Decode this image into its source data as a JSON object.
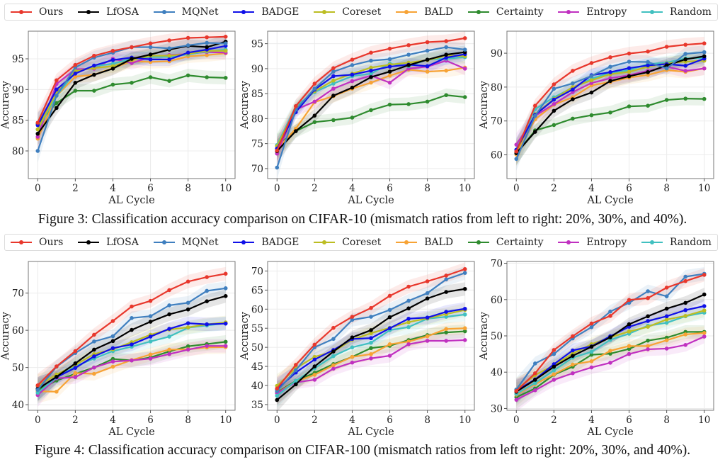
{
  "legend": [
    {
      "name": "Ours",
      "color": "#e8372c"
    },
    {
      "name": "LfOSA",
      "color": "#000000"
    },
    {
      "name": "MQNet",
      "color": "#3f7fbf"
    },
    {
      "name": "BADGE",
      "color": "#1010e8"
    },
    {
      "name": "Coreset",
      "color": "#bcbd22"
    },
    {
      "name": "BALD",
      "color": "#f7a335"
    },
    {
      "name": "Certainty",
      "color": "#2e8b2e"
    },
    {
      "name": "Entropy",
      "color": "#c030c0"
    },
    {
      "name": "Random",
      "color": "#40c0c0"
    }
  ],
  "captions": {
    "figure3": "Figure 3: Classification accuracy comparison on CIFAR-10 (mismatch ratios from left to right: 20%, 30%, and 40%).",
    "figure4": "Figure 4: Classification accuracy comparison on CIFAR-100 (mismatch ratios from left to right: 20%, 30%, and 40%)."
  },
  "chart_data": [
    {
      "type": "line",
      "figure": "Figure 3",
      "dataset": "CIFAR-10",
      "mismatch_ratio": "20%",
      "xlabel": "AL Cycle",
      "ylabel": "Accuracy",
      "x": [
        0,
        1,
        2,
        3,
        4,
        5,
        6,
        7,
        8,
        9,
        10
      ],
      "xticks": [
        0,
        2,
        4,
        6,
        8,
        10
      ],
      "yticks": [
        80,
        85,
        90,
        95
      ],
      "xlim": [
        -0.5,
        10.5
      ],
      "ylim": [
        75.5,
        99.5
      ],
      "grid": true,
      "series": [
        {
          "name": "Ours",
          "values": [
            84.6,
            91.5,
            94.0,
            95.5,
            96.3,
            96.9,
            97.5,
            98.0,
            98.4,
            98.5,
            98.6
          ]
        },
        {
          "name": "LfOSA",
          "values": [
            82.8,
            87.0,
            91.1,
            92.4,
            93.4,
            95.0,
            95.7,
            96.5,
            97.1,
            96.9,
            97.8
          ]
        },
        {
          "name": "MQNet",
          "values": [
            80.0,
            89.0,
            93.6,
            95.2,
            96.0,
            96.9,
            96.9,
            96.7,
            97.2,
            97.6,
            97.5
          ]
        },
        {
          "name": "BADGE",
          "values": [
            84.2,
            90.0,
            92.6,
            93.9,
            94.8,
            95.2,
            94.9,
            94.9,
            96.0,
            96.5,
            97.1
          ]
        },
        {
          "name": "Coreset",
          "values": [
            83.5,
            89.5,
            93.0,
            93.5,
            93.8,
            94.8,
            95.5,
            95.5,
            95.8,
            96.3,
            96.3
          ]
        },
        {
          "name": "BALD",
          "values": [
            82.0,
            89.0,
            92.1,
            92.4,
            93.5,
            94.6,
            94.5,
            94.6,
            95.4,
            95.6,
            95.9
          ]
        },
        {
          "name": "Certainty",
          "values": [
            84.4,
            87.8,
            89.8,
            89.8,
            90.8,
            91.1,
            92.0,
            91.4,
            92.3,
            92.0,
            91.9
          ]
        },
        {
          "name": "Entropy",
          "values": [
            82.3,
            90.9,
            93.3,
            93.4,
            95.0,
            94.3,
            95.3,
            95.6,
            95.8,
            96.1,
            96.0
          ]
        },
        {
          "name": "Random",
          "values": [
            83.5,
            89.0,
            92.8,
            93.8,
            94.2,
            95.0,
            95.3,
            95.3,
            95.7,
            96.2,
            96.5
          ]
        }
      ]
    },
    {
      "type": "line",
      "figure": "Figure 3",
      "dataset": "CIFAR-10",
      "mismatch_ratio": "30%",
      "xlabel": "AL Cycle",
      "ylabel": "Accuracy",
      "x": [
        0,
        1,
        2,
        3,
        4,
        5,
        6,
        7,
        8,
        9,
        10
      ],
      "xticks": [
        0,
        2,
        4,
        6,
        8,
        10
      ],
      "yticks": [
        70,
        75,
        80,
        85,
        90,
        95
      ],
      "xlim": [
        -0.5,
        10.5
      ],
      "ylim": [
        68,
        97.5
      ],
      "grid": true,
      "series": [
        {
          "name": "Ours",
          "values": [
            73.6,
            82.5,
            87.0,
            90.1,
            91.8,
            93.2,
            94.0,
            94.7,
            95.3,
            95.5,
            96.1
          ]
        },
        {
          "name": "LfOSA",
          "values": [
            73.5,
            77.5,
            80.6,
            84.6,
            86.2,
            88.3,
            89.4,
            90.7,
            91.8,
            92.8,
            93.3
          ]
        },
        {
          "name": "MQNet",
          "values": [
            70.2,
            81.8,
            86.0,
            89.4,
            90.7,
            91.6,
            91.9,
            92.8,
            93.6,
            94.3,
            93.8
          ]
        },
        {
          "name": "BADGE",
          "values": [
            74.0,
            81.3,
            85.8,
            88.5,
            88.8,
            89.6,
            90.4,
            90.8,
            90.5,
            92.2,
            92.9
          ]
        },
        {
          "name": "Coreset",
          "values": [
            74.5,
            82.0,
            85.5,
            87.6,
            89.0,
            90.2,
            90.8,
            91.2,
            91.7,
            92.6,
            92.5
          ]
        },
        {
          "name": "BALD",
          "values": [
            73.9,
            78.0,
            83.3,
            84.5,
            86.0,
            87.2,
            88.6,
            89.8,
            89.4,
            89.6,
            90.2
          ]
        },
        {
          "name": "Certainty",
          "values": [
            74.6,
            77.5,
            79.3,
            79.7,
            80.2,
            81.7,
            82.8,
            82.9,
            83.4,
            84.7,
            84.3
          ]
        },
        {
          "name": "Entropy",
          "values": [
            73.0,
            81.8,
            83.4,
            86.0,
            87.5,
            88.6,
            87.2,
            90.0,
            90.4,
            91.6,
            90.0
          ]
        },
        {
          "name": "Random",
          "values": [
            74.7,
            82.5,
            85.3,
            87.0,
            88.5,
            89.0,
            91.0,
            90.5,
            91.8,
            92.0,
            92.3
          ]
        }
      ]
    },
    {
      "type": "line",
      "figure": "Figure 3",
      "dataset": "CIFAR-10",
      "mismatch_ratio": "40%",
      "xlabel": "AL Cycle",
      "ylabel": "Accuracy",
      "x": [
        0,
        1,
        2,
        3,
        4,
        5,
        6,
        7,
        8,
        9,
        10
      ],
      "xticks": [
        0,
        2,
        4,
        6,
        8,
        10
      ],
      "yticks": [
        60,
        70,
        80,
        90
      ],
      "xlim": [
        -0.5,
        10.5
      ],
      "ylim": [
        53,
        96.5
      ],
      "grid": true,
      "series": [
        {
          "name": "Ours",
          "values": [
            61.0,
            74.5,
            80.8,
            84.8,
            87.1,
            88.8,
            89.9,
            90.5,
            91.9,
            92.5,
            92.9
          ]
        },
        {
          "name": "LfOSA",
          "values": [
            60.5,
            66.8,
            73.0,
            76.4,
            78.4,
            81.8,
            83.2,
            84.4,
            86.4,
            88.2,
            89.1
          ]
        },
        {
          "name": "MQNet",
          "values": [
            58.8,
            71.5,
            79.5,
            81.1,
            83.3,
            86.0,
            87.5,
            87.4,
            85.5,
            89.8,
            90.3
          ]
        },
        {
          "name": "BADGE",
          "values": [
            61.5,
            71.8,
            76.3,
            79.3,
            83.5,
            84.4,
            85.6,
            86.4,
            86.8,
            86.3,
            88.4
          ]
        },
        {
          "name": "Coreset",
          "values": [
            61.0,
            72.0,
            76.5,
            80.0,
            82.0,
            83.8,
            84.5,
            86.0,
            87.0,
            87.5,
            87.8
          ]
        },
        {
          "name": "BALD",
          "values": [
            60.1,
            70.5,
            74.8,
            77.0,
            80.5,
            81.5,
            82.8,
            83.6,
            85.0,
            84.5,
            85.5
          ]
        },
        {
          "name": "Certainty",
          "values": [
            60.3,
            67.2,
            68.8,
            70.7,
            71.7,
            72.5,
            74.3,
            74.5,
            76.2,
            76.6,
            76.5
          ]
        },
        {
          "name": "Entropy",
          "values": [
            63.0,
            71.5,
            75.0,
            78.5,
            81.2,
            82.6,
            83.5,
            84.8,
            86.0,
            84.8,
            85.5
          ]
        },
        {
          "name": "Random",
          "values": [
            61.5,
            73.5,
            77.0,
            79.8,
            82.5,
            84.2,
            85.0,
            86.8,
            87.2,
            88.5,
            88.6
          ]
        }
      ]
    },
    {
      "type": "line",
      "figure": "Figure 4",
      "dataset": "CIFAR-100",
      "mismatch_ratio": "20%",
      "xlabel": "AL Cycle",
      "ylabel": "Accuracy",
      "x": [
        0,
        1,
        2,
        3,
        4,
        5,
        6,
        7,
        8,
        9,
        10
      ],
      "xticks": [
        0,
        2,
        4,
        6,
        8,
        10
      ],
      "yticks": [
        40,
        50,
        60,
        70
      ],
      "xlim": [
        -0.5,
        10.5
      ],
      "ylim": [
        38.5,
        78.5
      ],
      "grid": true,
      "series": [
        {
          "name": "Ours",
          "values": [
            45.2,
            50.3,
            54.4,
            58.8,
            62.5,
            66.4,
            67.9,
            70.8,
            73.1,
            74.3,
            75.2
          ]
        },
        {
          "name": "LfOSA",
          "values": [
            44.2,
            47.5,
            51.1,
            54.8,
            57.1,
            60.1,
            62.3,
            64.3,
            65.6,
            67.8,
            69.2
          ]
        },
        {
          "name": "MQNet",
          "values": [
            44.0,
            50.2,
            53.9,
            57.0,
            58.4,
            63.3,
            63.8,
            66.7,
            67.4,
            70.6,
            71.3
          ]
        },
        {
          "name": "BADGE",
          "values": [
            44.3,
            47.4,
            49.9,
            53.0,
            55.2,
            56.2,
            58.3,
            60.4,
            61.9,
            61.6,
            61.8
          ]
        },
        {
          "name": "Coreset",
          "values": [
            45.0,
            48.1,
            50.7,
            53.6,
            54.9,
            56.8,
            58.8,
            60.2,
            60.8,
            61.6,
            62.1
          ]
        },
        {
          "name": "BALD",
          "values": [
            43.6,
            43.5,
            48.5,
            48.3,
            50.2,
            52.0,
            53.5,
            54.8,
            54.9,
            55.4,
            55.5
          ]
        },
        {
          "name": "Certainty",
          "values": [
            43.9,
            46.5,
            48.3,
            50.0,
            52.3,
            51.9,
            52.7,
            54.3,
            55.7,
            56.3,
            56.9
          ]
        },
        {
          "name": "Entropy",
          "values": [
            42.6,
            47.1,
            47.4,
            50.0,
            51.6,
            51.9,
            52.4,
            53.6,
            54.8,
            55.8,
            55.8
          ]
        },
        {
          "name": "Random",
          "values": [
            43.2,
            47.3,
            50.3,
            52.4,
            54.4,
            55.6,
            57.0,
            58.3,
            60.7,
            61.3,
            61.9
          ]
        }
      ]
    },
    {
      "type": "line",
      "figure": "Figure 4",
      "dataset": "CIFAR-100",
      "mismatch_ratio": "30%",
      "xlabel": "AL Cycle",
      "ylabel": "Accuracy",
      "x": [
        0,
        1,
        2,
        3,
        4,
        5,
        6,
        7,
        8,
        9,
        10
      ],
      "xticks": [
        0,
        2,
        4,
        6,
        8,
        10
      ],
      "yticks": [
        35,
        40,
        45,
        50,
        55,
        60,
        65,
        70
      ],
      "xlim": [
        -0.5,
        10.5
      ],
      "ylim": [
        33.5,
        72.5
      ],
      "grid": true,
      "series": [
        {
          "name": "Ours",
          "values": [
            39.2,
            45.4,
            50.7,
            55.1,
            58.0,
            60.3,
            63.5,
            65.9,
            67.3,
            68.8,
            70.5
          ]
        },
        {
          "name": "LfOSA",
          "values": [
            36.2,
            40.3,
            45.0,
            48.9,
            52.6,
            54.5,
            57.9,
            60.2,
            62.8,
            64.5,
            65.3
          ]
        },
        {
          "name": "MQNet",
          "values": [
            38.5,
            44.0,
            50.0,
            52.2,
            57.2,
            58.0,
            59.8,
            62.2,
            64.2,
            67.8,
            69.5
          ]
        },
        {
          "name": "BADGE",
          "values": [
            39.0,
            43.4,
            46.8,
            49.3,
            52.2,
            52.4,
            55.0,
            57.5,
            57.8,
            59.3,
            60.1
          ]
        },
        {
          "name": "Coreset",
          "values": [
            39.9,
            44.5,
            47.5,
            48.9,
            52.0,
            53.7,
            55.1,
            56.6,
            57.6,
            58.7,
            59.8
          ]
        },
        {
          "name": "BALD",
          "values": [
            38.0,
            41.0,
            42.8,
            45.3,
            47.5,
            48.2,
            50.8,
            51.5,
            52.9,
            54.8,
            55.0
          ]
        },
        {
          "name": "Certainty",
          "values": [
            38.2,
            41.2,
            43.3,
            45.6,
            47.5,
            49.8,
            50.4,
            51.9,
            53.2,
            53.9,
            54.2
          ]
        },
        {
          "name": "Entropy",
          "values": [
            38.0,
            40.8,
            41.5,
            44.4,
            46.0,
            47.1,
            47.8,
            50.8,
            51.7,
            51.7,
            51.9
          ]
        },
        {
          "name": "Random",
          "values": [
            37.3,
            41.2,
            44.5,
            47.7,
            50.0,
            51.2,
            54.5,
            55.3,
            57.5,
            58.0,
            58.6
          ]
        }
      ]
    },
    {
      "type": "line",
      "figure": "Figure 4",
      "dataset": "CIFAR-100",
      "mismatch_ratio": "40%",
      "xlabel": "AL Cycle",
      "ylabel": "Accuracy",
      "x": [
        0,
        1,
        2,
        3,
        4,
        5,
        6,
        7,
        8,
        9,
        10
      ],
      "xticks": [
        0,
        2,
        4,
        6,
        8,
        10
      ],
      "yticks": [
        30,
        40,
        50,
        60,
        70
      ],
      "xlim": [
        -0.5,
        10.5
      ],
      "ylim": [
        29.5,
        70.5
      ],
      "grid": true,
      "series": [
        {
          "name": "Ours",
          "values": [
            34.8,
            39.7,
            46.1,
            49.9,
            53.4,
            55.5,
            59.9,
            60.4,
            63.3,
            65.1,
            66.8
          ]
        },
        {
          "name": "LfOSA",
          "values": [
            34.6,
            37.9,
            41.5,
            44.5,
            47.0,
            49.6,
            53.2,
            55.4,
            57.5,
            59.1,
            61.4
          ]
        },
        {
          "name": "MQNet",
          "values": [
            35.2,
            42.4,
            45.0,
            49.3,
            52.4,
            56.7,
            59.1,
            62.3,
            60.9,
            66.3,
            67.1
          ]
        },
        {
          "name": "BADGE",
          "values": [
            34.9,
            38.0,
            42.2,
            46.0,
            47.1,
            49.9,
            52.5,
            54.1,
            55.4,
            57.1,
            58.2
          ]
        },
        {
          "name": "Coreset",
          "values": [
            35.2,
            39.2,
            41.9,
            45.1,
            47.7,
            49.6,
            51.2,
            52.5,
            54.5,
            55.5,
            57.0
          ]
        },
        {
          "name": "BALD",
          "values": [
            33.8,
            36.7,
            39.4,
            42.1,
            43.0,
            45.9,
            47.2,
            47.2,
            48.8,
            50.4,
            50.8
          ]
        },
        {
          "name": "Certainty",
          "values": [
            33.1,
            35.5,
            39.3,
            41.5,
            44.8,
            45.1,
            46.4,
            48.7,
            49.5,
            51.1,
            51.1
          ]
        },
        {
          "name": "Entropy",
          "values": [
            32.4,
            35.0,
            37.9,
            39.7,
            41.3,
            42.6,
            45.0,
            46.3,
            46.5,
            47.5,
            49.8
          ]
        },
        {
          "name": "Random",
          "values": [
            34.0,
            37.0,
            40.5,
            44.0,
            45.6,
            48.9,
            50.6,
            52.8,
            53.6,
            55.4,
            56.4
          ]
        }
      ]
    }
  ]
}
